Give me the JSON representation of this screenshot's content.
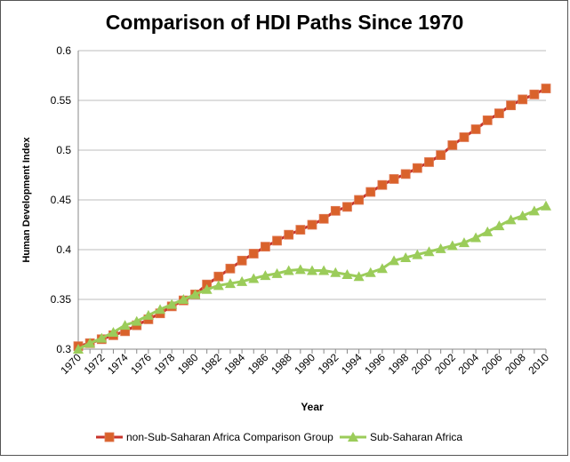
{
  "chart_data": {
    "type": "line",
    "title": "Comparison of HDI Paths Since 1970",
    "xlabel": "Year",
    "ylabel": "Human Development Index",
    "ylim": [
      0.3,
      0.6
    ],
    "yticks": [
      "0.3",
      "0.35",
      "0.4",
      "0.45",
      "0.5",
      "0.55",
      "0.6"
    ],
    "xlim": [
      1970,
      2010
    ],
    "xticks": [
      "1970",
      "1972",
      "1974",
      "1976",
      "1978",
      "1980",
      "1982",
      "1984",
      "1986",
      "1988",
      "1990",
      "1992",
      "1994",
      "1996",
      "1998",
      "2000",
      "2002",
      "2004",
      "2006",
      "2008",
      "2010"
    ],
    "grid": "horizontal",
    "legend": "bottom",
    "x": [
      1970,
      1971,
      1972,
      1973,
      1974,
      1975,
      1976,
      1977,
      1978,
      1979,
      1980,
      1981,
      1982,
      1983,
      1984,
      1985,
      1986,
      1987,
      1988,
      1989,
      1990,
      1991,
      1992,
      1993,
      1994,
      1995,
      1996,
      1997,
      1998,
      1999,
      2000,
      2001,
      2002,
      2003,
      2004,
      2005,
      2006,
      2007,
      2008,
      2009,
      2010
    ],
    "series": [
      {
        "name": "non-Sub-Saharan Africa Comparison Group",
        "color": "#d9622b",
        "line_color": "#c8332a",
        "marker": "square",
        "values": [
          0.303,
          0.306,
          0.31,
          0.314,
          0.318,
          0.324,
          0.33,
          0.336,
          0.343,
          0.349,
          0.355,
          0.365,
          0.373,
          0.381,
          0.389,
          0.396,
          0.403,
          0.409,
          0.415,
          0.42,
          0.425,
          0.431,
          0.439,
          0.443,
          0.45,
          0.458,
          0.465,
          0.471,
          0.476,
          0.482,
          0.488,
          0.495,
          0.505,
          0.513,
          0.521,
          0.53,
          0.537,
          0.545,
          0.551,
          0.556,
          0.562
        ]
      },
      {
        "name": "Sub-Saharan Africa",
        "color": "#9bcc5a",
        "line_color": "#9bcc5a",
        "marker": "triangle",
        "values": [
          0.3,
          0.306,
          0.311,
          0.317,
          0.324,
          0.328,
          0.334,
          0.34,
          0.345,
          0.35,
          0.355,
          0.36,
          0.364,
          0.366,
          0.368,
          0.371,
          0.374,
          0.376,
          0.379,
          0.38,
          0.379,
          0.379,
          0.377,
          0.375,
          0.373,
          0.377,
          0.381,
          0.389,
          0.392,
          0.395,
          0.398,
          0.401,
          0.404,
          0.407,
          0.412,
          0.418,
          0.424,
          0.43,
          0.434,
          0.439,
          0.444
        ]
      }
    ]
  }
}
